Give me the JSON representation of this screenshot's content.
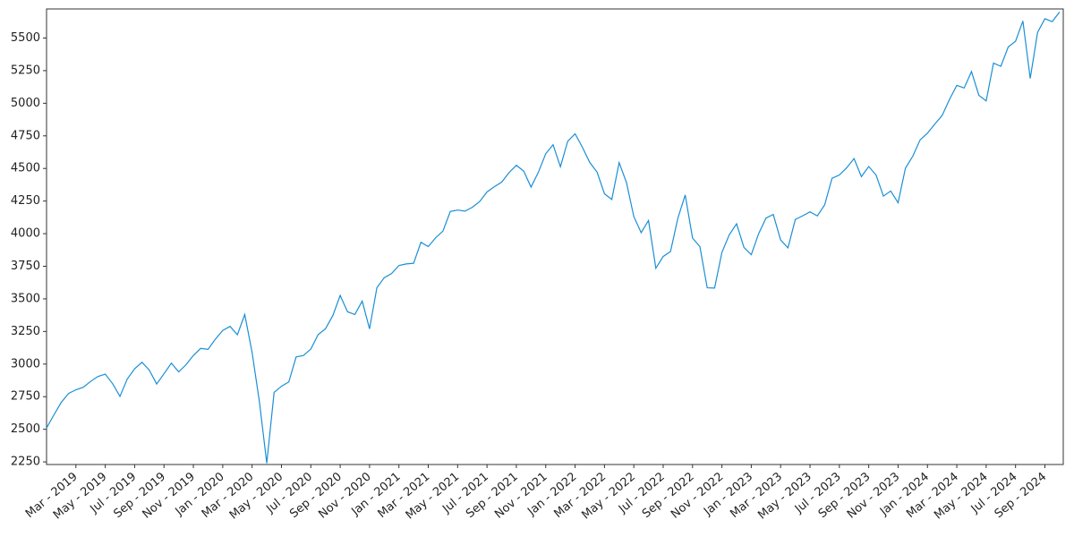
{
  "chart_data": {
    "type": "line",
    "color": "#1a8fd6",
    "ylim": [
      2230,
      5723
    ],
    "yticks": [
      2250,
      2500,
      2750,
      3000,
      3250,
      3500,
      3750,
      4000,
      4250,
      4500,
      4750,
      5000,
      5250,
      5500
    ],
    "x": [
      null,
      null,
      null,
      null,
      "Mar - 2019",
      null,
      null,
      null,
      "May - 2019",
      null,
      null,
      null,
      "Jul - 2019",
      null,
      null,
      null,
      "Sep - 2019",
      null,
      null,
      null,
      "Nov - 2019",
      null,
      null,
      null,
      "Jan - 2020",
      null,
      null,
      null,
      "Mar - 2020",
      null,
      null,
      null,
      "May - 2020",
      null,
      null,
      null,
      "Jul - 2020",
      null,
      null,
      null,
      "Sep - 2020",
      null,
      null,
      null,
      "Nov - 2020",
      null,
      null,
      null,
      "Jan - 2021",
      null,
      null,
      null,
      "Mar - 2021",
      null,
      null,
      null,
      "May - 2021",
      null,
      null,
      null,
      "Jul - 2021",
      null,
      null,
      null,
      "Sep - 2021",
      null,
      null,
      null,
      "Nov - 2021",
      null,
      null,
      null,
      "Jan - 2022",
      null,
      null,
      null,
      "Mar - 2022",
      null,
      null,
      null,
      "May - 2022",
      null,
      null,
      null,
      "Jul - 2022",
      null,
      null,
      null,
      "Sep - 2022",
      null,
      null,
      null,
      "Nov - 2022",
      null,
      null,
      null,
      "Jan - 2023",
      null,
      null,
      null,
      "Mar - 2023",
      null,
      null,
      null,
      "May - 2023",
      null,
      null,
      null,
      "Jul - 2023",
      null,
      null,
      null,
      "Sep - 2023",
      null,
      null,
      null,
      "Nov - 2023",
      null,
      null,
      null,
      "Jan - 2024",
      null,
      null,
      null,
      "Mar - 2024",
      null,
      null,
      null,
      "May - 2024",
      null,
      null,
      null,
      "Jul - 2024",
      null,
      null,
      null,
      "Sep - 2024",
      null,
      null
    ],
    "values": [
      2510,
      2610,
      2706,
      2775,
      2803,
      2822,
      2867,
      2905,
      2923,
      2850,
      2752,
      2886,
      2964,
      3014,
      2953,
      2847,
      2926,
      3007,
      2940,
      2995,
      3066,
      3120,
      3113,
      3191,
      3258,
      3289,
      3225,
      3380,
      3090,
      2711,
      2240,
      2783,
      2830,
      2863,
      3055,
      3066,
      3115,
      3226,
      3271,
      3372,
      3526,
      3401,
      3380,
      3483,
      3270,
      3585,
      3662,
      3694,
      3756,
      3768,
      3773,
      3934,
      3901,
      3968,
      4020,
      4170,
      4181,
      4173,
      4202,
      4246,
      4320,
      4360,
      4395,
      4468,
      4524,
      4480,
      4357,
      4471,
      4613,
      4682,
      4513,
      4709,
      4766,
      4662,
      4546,
      4471,
      4306,
      4262,
      4545,
      4392,
      4131,
      4008,
      4101,
      3735,
      3825,
      3863,
      4118,
      4297,
      3966,
      3901,
      3585,
      3583,
      3856,
      3991,
      4076,
      3895,
      3839,
      3999,
      4119,
      4147,
      3951,
      3891,
      4109,
      4137,
      4167,
      4136,
      4221,
      4425,
      4450,
      4505,
      4576,
      4437,
      4515,
      4450,
      4288,
      4327,
      4237,
      4502,
      4594,
      4719,
      4770,
      4840,
      4906,
      5029,
      5137,
      5117,
      5243,
      5061,
      5018,
      5308,
      5283,
      5431,
      5475,
      5631,
      5190,
      5543,
      5648,
      5626,
      5700
    ]
  }
}
